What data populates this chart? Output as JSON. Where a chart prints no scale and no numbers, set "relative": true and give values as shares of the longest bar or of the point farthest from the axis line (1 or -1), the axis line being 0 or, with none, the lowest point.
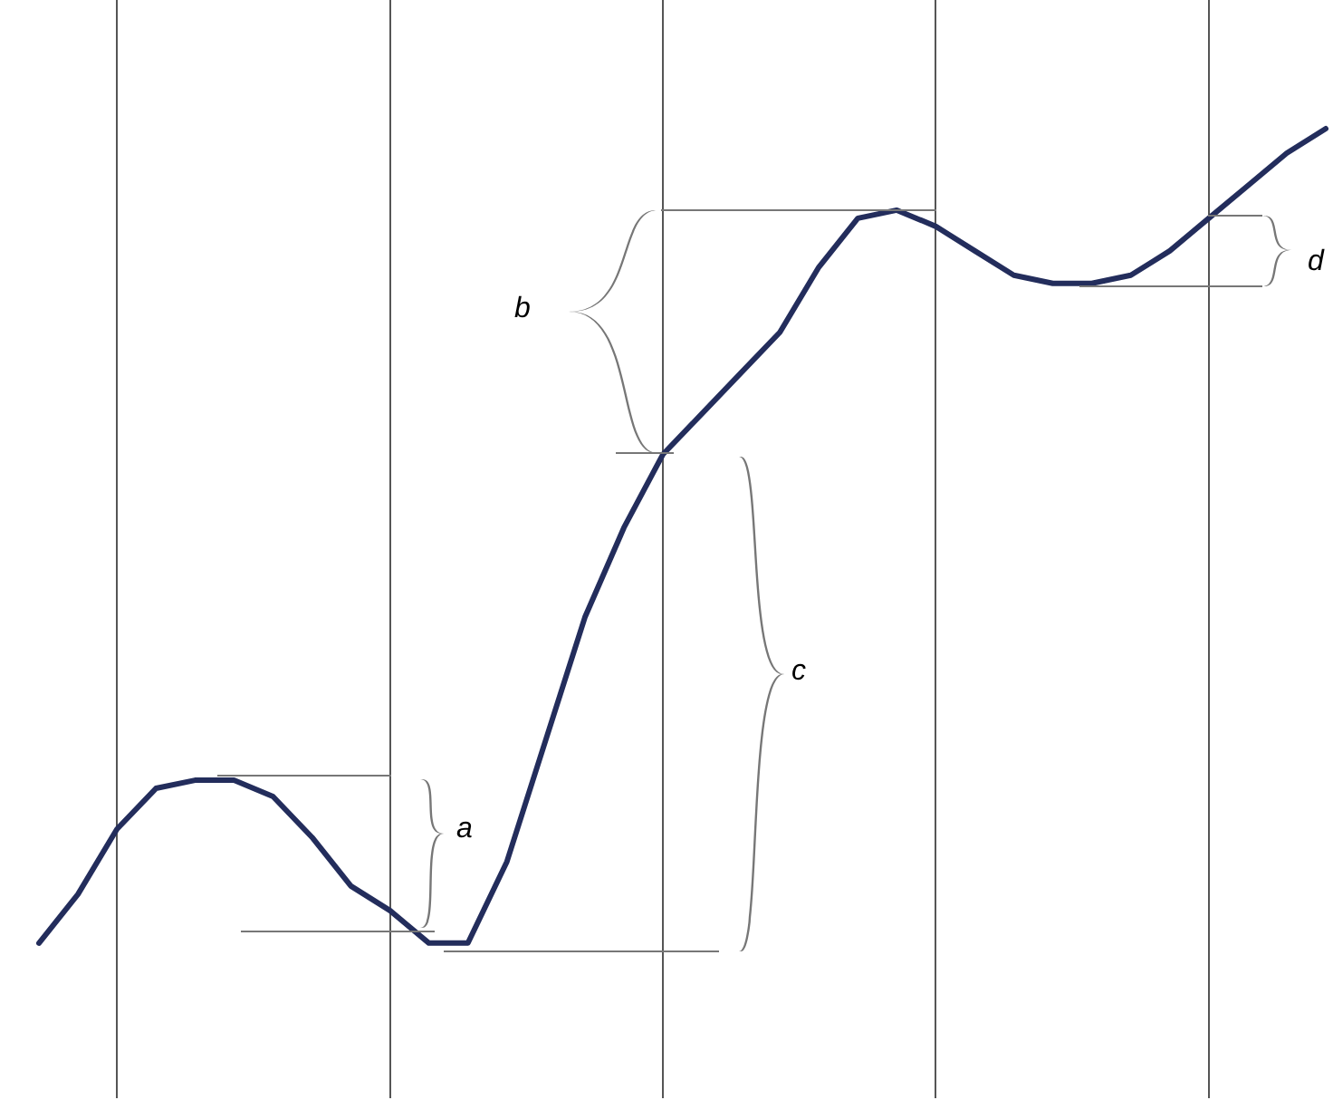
{
  "chart_data": {
    "type": "line",
    "relative": true,
    "grid": "x",
    "marker": "none",
    "line_style": "solid",
    "categories": [
      null,
      null,
      null,
      null,
      null,
      null,
      null,
      null,
      null,
      null,
      null,
      null,
      null,
      null,
      null,
      null,
      null,
      null,
      null,
      null,
      null,
      null,
      null,
      null,
      null,
      null,
      null,
      null,
      null,
      null,
      null,
      null,
      null,
      null,
      null
    ],
    "series": [
      {
        "color": "#232d5c",
        "values": [
          null,
          0,
          0.06,
          0.14,
          0.19,
          0.2,
          0.2,
          0.18,
          0.13,
          0.07,
          0.04,
          0,
          0,
          0.1,
          0.25,
          0.4,
          0.51,
          0.6,
          0.65,
          0.7,
          0.75,
          0.83,
          0.89,
          0.9,
          0.88,
          0.85,
          0.82,
          0.81,
          0.81,
          0.82,
          0.85,
          0.89,
          0.93,
          0.97,
          1
        ]
      }
    ],
    "annotations": [
      "a",
      "b",
      "c",
      "d"
    ]
  }
}
